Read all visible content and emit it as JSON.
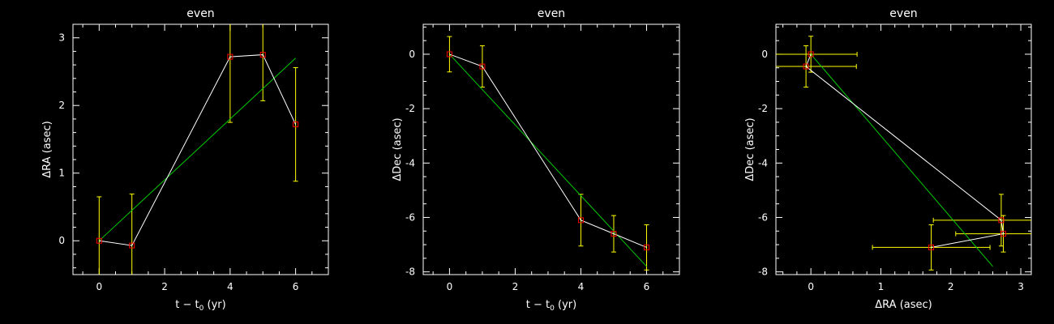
{
  "chart_data": [
    {
      "type": "scatter",
      "title": "even",
      "xlabel": "t − t",
      "xlabel_sub": "0",
      "xlabel_unit": " (yr)",
      "ylabel": "ΔRA (asec)",
      "xlim": [
        -0.8,
        7
      ],
      "ylim": [
        -0.5,
        3.2
      ],
      "xticks": [
        0,
        2,
        4,
        6
      ],
      "yticks": [
        0,
        1,
        2,
        3
      ],
      "grid": false,
      "points": [
        {
          "x": 0,
          "y": 0,
          "yerr": 0.65
        },
        {
          "x": 1,
          "y": -0.07,
          "yerr": 0.76
        },
        {
          "x": 4,
          "y": 2.72,
          "yerr": 0.97
        },
        {
          "x": 5,
          "y": 2.75,
          "yerr": 0.68
        },
        {
          "x": 6,
          "y": 1.72,
          "yerr": 0.84
        }
      ],
      "fit": [
        [
          0,
          0
        ],
        [
          6,
          2.7
        ]
      ]
    },
    {
      "type": "scatter",
      "title": "even",
      "xlabel": "t − t",
      "xlabel_sub": "0",
      "xlabel_unit": " (yr)",
      "ylabel": "ΔDec (asec)",
      "xlim": [
        -0.8,
        7
      ],
      "ylim": [
        -8.1,
        1.1
      ],
      "xticks": [
        0,
        2,
        4,
        6
      ],
      "yticks": [
        0,
        -2,
        -4,
        -6,
        -8
      ],
      "grid": false,
      "points": [
        {
          "x": 0,
          "y": 0,
          "yerr": 0.65
        },
        {
          "x": 1,
          "y": -0.45,
          "yerr": 0.76
        },
        {
          "x": 4,
          "y": -6.1,
          "yerr": 0.95
        },
        {
          "x": 5,
          "y": -6.6,
          "yerr": 0.67
        },
        {
          "x": 6,
          "y": -7.1,
          "yerr": 0.83
        }
      ],
      "fit": [
        [
          0,
          0
        ],
        [
          6,
          -7.8
        ]
      ]
    },
    {
      "type": "scatter",
      "title": "even",
      "xlabel": "ΔRA (asec)",
      "xlabel_sub": "",
      "xlabel_unit": "",
      "ylabel": "ΔDec (asec)",
      "xlim": [
        -0.5,
        3.15
      ],
      "ylim": [
        -8.1,
        1.1
      ],
      "xticks": [
        0,
        1,
        2,
        3
      ],
      "yticks": [
        0,
        -2,
        -4,
        -6,
        -8
      ],
      "grid": false,
      "points": [
        {
          "x": 0,
          "y": 0,
          "xerr": 0.66,
          "yerr": 0.66
        },
        {
          "x": -0.07,
          "y": -0.45,
          "xerr": 0.72,
          "yerr": 0.76
        },
        {
          "x": 2.72,
          "y": -6.1,
          "xerr": 0.97,
          "yerr": 0.95
        },
        {
          "x": 2.75,
          "y": -6.6,
          "xerr": 0.68,
          "yerr": 0.67
        },
        {
          "x": 1.72,
          "y": -7.1,
          "xerr": 0.84,
          "yerr": 0.83
        }
      ],
      "fit": [
        [
          0,
          0
        ],
        [
          2.6,
          -7.8
        ]
      ]
    }
  ]
}
